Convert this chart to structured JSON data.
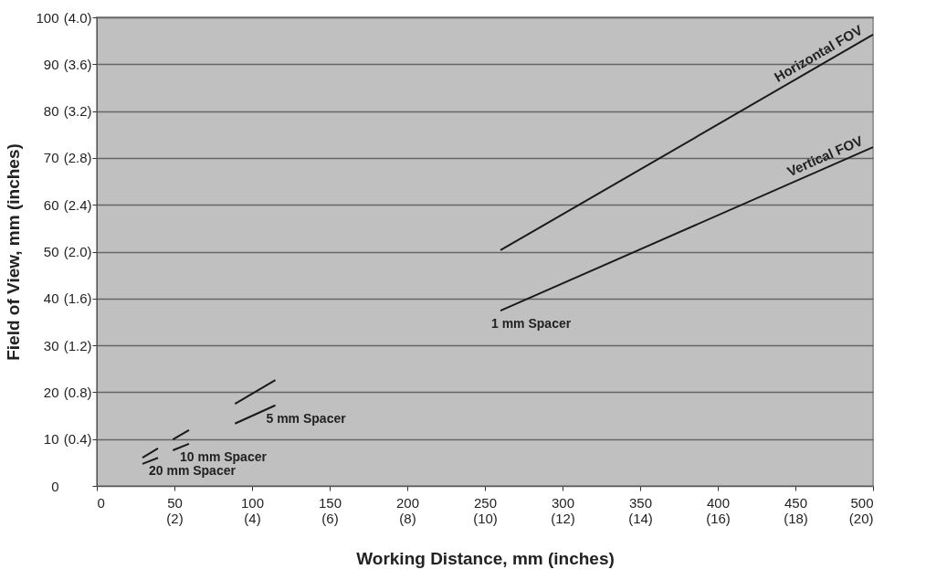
{
  "chart_data": {
    "type": "line",
    "xlabel": "Working Distance, mm (inches)",
    "ylabel": "Field of View, mm (inches)",
    "xlim": [
      0,
      500
    ],
    "ylim": [
      0,
      100
    ],
    "xticks": [
      0,
      50,
      100,
      150,
      200,
      250,
      300,
      350,
      400,
      450,
      500
    ],
    "yticks": [
      0,
      10,
      20,
      30,
      40,
      50,
      60,
      70,
      80,
      90,
      100
    ],
    "x2lim": [
      0,
      20
    ],
    "x2ticks": [
      {
        "value": 2,
        "label": "(2)"
      },
      {
        "value": 4,
        "label": "(4)"
      },
      {
        "value": 6,
        "label": "(6)"
      },
      {
        "value": 8,
        "label": "(8)"
      },
      {
        "value": 10,
        "label": "(10)"
      },
      {
        "value": 12,
        "label": "(12)"
      },
      {
        "value": 14,
        "label": "(14)"
      },
      {
        "value": 16,
        "label": "(16)"
      },
      {
        "value": 18,
        "label": "(18)"
      },
      {
        "value": 20,
        "label": "(20)"
      }
    ],
    "y2lim": [
      0,
      4
    ],
    "y2ticks": [
      {
        "value": 0.4,
        "label": "(0.4)"
      },
      {
        "value": 0.8,
        "label": "(0.8)"
      },
      {
        "value": 1.2,
        "label": "(1.2)"
      },
      {
        "value": 1.6,
        "label": "(1.6)"
      },
      {
        "value": 2.0,
        "label": "(2.0)"
      },
      {
        "value": 2.4,
        "label": "(2.4)"
      },
      {
        "value": 2.8,
        "label": "(2.8)"
      },
      {
        "value": 3.2,
        "label": "(3.2)"
      },
      {
        "value": 3.6,
        "label": "(3.6)"
      },
      {
        "value": 4.0,
        "label": "(4.0)"
      }
    ],
    "grid": "y",
    "marker": "none",
    "line_style": "solid",
    "series": [
      {
        "name": "Horizontal FOV",
        "color": "#1a1a1a",
        "x": [
          260,
          500
        ],
        "values": [
          50.3,
          96.3
        ]
      },
      {
        "name": "Vertical FOV",
        "color": "#1a1a1a",
        "x": [
          260,
          500
        ],
        "values": [
          37.4,
          72.3
        ]
      },
      {
        "color": "#1a1a1a",
        "x": [
          89,
          115
        ],
        "values": [
          17.5,
          22.6
        ]
      },
      {
        "color": "#1a1a1a",
        "x": [
          89,
          115
        ],
        "values": [
          13.3,
          17.2
        ]
      },
      {
        "color": "#1a1a1a",
        "x": [
          49,
          59.4
        ],
        "values": [
          9.9,
          11.9
        ]
      },
      {
        "color": "#1a1a1a",
        "x": [
          49,
          59.4
        ],
        "values": [
          7.6,
          9.0
        ]
      },
      {
        "color": "#1a1a1a",
        "x": [
          29.4,
          39.4
        ],
        "values": [
          6.0,
          8.0
        ]
      },
      {
        "color": "#1a1a1a",
        "x": [
          29.4,
          39.4
        ],
        "values": [
          4.7,
          6.0
        ]
      }
    ],
    "annotations": [
      {
        "text": "1 mm Spacer",
        "x": 260,
        "y": 37.4
      },
      {
        "text": "5 mm Spacer",
        "x": 115,
        "y": 17.2
      },
      {
        "text": "10 mm Spacer",
        "x": 59.4,
        "y": 9.0
      },
      {
        "text": "20 mm Spacer",
        "x": 39.4,
        "y": 6.0
      }
    ]
  }
}
